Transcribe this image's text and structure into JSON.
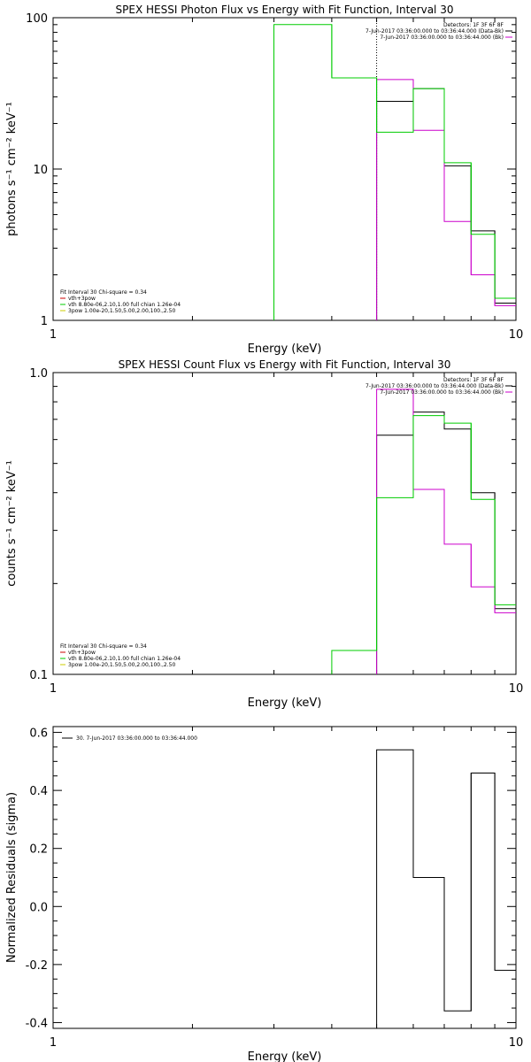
{
  "chart_data": [
    {
      "type": "line",
      "title": "SPEX HESSI Photon Flux vs Energy with Fit Function, Interval 30",
      "xlabel": "Energy (keV)",
      "ylabel": "photons s⁻¹ cm⁻² keV⁻¹",
      "xscale": "log",
      "yscale": "log",
      "xlim": [
        1,
        10
      ],
      "ylim": [
        1,
        100
      ],
      "xticks": [
        "1",
        "10"
      ],
      "yticks": [
        "1",
        "10",
        "100"
      ],
      "vline_x": 5.0,
      "legend_top_right": [
        {
          "text": "Detectors: 1F 3F 6F 8F",
          "color": ""
        },
        {
          "text": "7-Jun-2017 03:36:00.000 to 03:36:44.000 (Data-Bk)",
          "color": "#000000"
        },
        {
          "text": "7-Jun-2017 03:36:00.000 to 03:36:44.000 (Bk)",
          "color": "#cc00cc"
        }
      ],
      "legend_bottom_left": [
        {
          "text": "Fit Interval 30   Chi-square = 0.34",
          "color": ""
        },
        {
          "text": "vth+3pow",
          "color": "#cc0000"
        },
        {
          "text": "vth 8.80e-06,2.10,1.00  full chian 1.26e-04",
          "color": "#00cc00"
        },
        {
          "text": "3pow 1.00e-20,1.50,5.00,2.00,100.,2.50",
          "color": "#cccc00"
        }
      ],
      "series": [
        {
          "color": "#000000",
          "edges": [
            5.0,
            6.0,
            7.0,
            8.0,
            9.0,
            10.0
          ],
          "values": [
            28,
            34,
            10.5,
            3.9,
            1.3
          ]
        },
        {
          "color": "#cc00cc",
          "edges": [
            5.0,
            6.0,
            7.0,
            8.0,
            9.0,
            10.0
          ],
          "values": [
            39,
            18,
            4.5,
            2.0,
            1.25
          ]
        },
        {
          "color": "#00cc00",
          "edges": [
            3.0,
            4.0,
            5.0,
            6.0,
            7.0,
            8.0,
            9.0,
            10.0
          ],
          "values": [
            90,
            40,
            17.5,
            34,
            11,
            3.7,
            1.4
          ]
        }
      ]
    },
    {
      "type": "line",
      "title": "SPEX HESSI Count Flux vs Energy with Fit Function, Interval 30",
      "xlabel": "Energy (keV)",
      "ylabel": "counts s⁻¹ cm⁻² keV⁻¹",
      "xscale": "log",
      "yscale": "log",
      "xlim": [
        1,
        10
      ],
      "ylim": [
        0.1,
        1.0
      ],
      "xticks": [
        "1",
        "10"
      ],
      "yticks": [
        "0.1",
        "1.0"
      ],
      "legend_top_right": [
        {
          "text": "Detectors: 1F 3F 6F 8F",
          "color": ""
        },
        {
          "text": "7-Jun-2017 03:36:00.000 to 03:36:44.000 (Data-Bk)",
          "color": "#000000"
        },
        {
          "text": "7-Jun-2017 03:36:00.000 to 03:36:44.000 (Bk)",
          "color": "#cc00cc"
        }
      ],
      "legend_bottom_left": [
        {
          "text": "Fit Interval 30   Chi-square = 0.34",
          "color": ""
        },
        {
          "text": "vth+3pow",
          "color": "#cc0000"
        },
        {
          "text": "vth 8.80e-06,2.10,1.00  full chian 1.26e-04",
          "color": "#00cc00"
        },
        {
          "text": "3pow 1.00e-20,1.50,5.00,2.00,100.,2.50",
          "color": "#cccc00"
        }
      ],
      "series": [
        {
          "color": "#000000",
          "edges": [
            5.0,
            6.0,
            7.0,
            8.0,
            9.0,
            10.0
          ],
          "values": [
            0.62,
            0.74,
            0.65,
            0.4,
            0.165
          ]
        },
        {
          "color": "#cc00cc",
          "edges": [
            5.0,
            6.0,
            7.0,
            8.0,
            9.0,
            10.0
          ],
          "values": [
            0.88,
            0.41,
            0.27,
            0.195,
            0.16
          ]
        },
        {
          "color": "#00cc00",
          "edges": [
            4.0,
            5.0,
            6.0,
            7.0,
            8.0,
            9.0,
            10.0
          ],
          "values": [
            0.12,
            0.385,
            0.72,
            0.68,
            0.38,
            0.17
          ]
        }
      ]
    },
    {
      "type": "line",
      "title": "",
      "xlabel": "Energy (keV)",
      "ylabel": "Normalized Residuals (sigma)",
      "xscale": "log",
      "yscale": "linear",
      "xlim": [
        1,
        10
      ],
      "ylim": [
        -0.42,
        0.62
      ],
      "xticks": [
        "1",
        "10"
      ],
      "yticks": [
        "-0.4",
        "-0.2",
        "0.0",
        "0.2",
        "0.4",
        "0.6"
      ],
      "legend_top_left": [
        {
          "text": "30.  7-Jun-2017 03:36:00.000 to 03:36:44.000",
          "color": "#000000"
        }
      ],
      "series": [
        {
          "color": "#000000",
          "edges": [
            5.0,
            6.0,
            7.0,
            8.0,
            9.0,
            10.0
          ],
          "values": [
            0.54,
            0.1,
            -0.36,
            0.46,
            -0.22
          ]
        }
      ]
    }
  ]
}
